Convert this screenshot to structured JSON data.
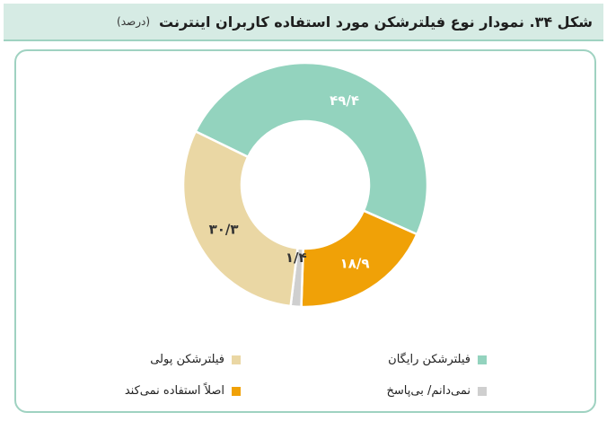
{
  "header": {
    "title": "شکل ۳۴. نمودار نوع فیلترشکن مورد استفاده کاربران اینترنت",
    "unit": "(درصد)"
  },
  "chart_data": {
    "type": "pie",
    "variant": "donut",
    "title": "شکل ۳۴. نمودار نوع فیلترشکن مورد استفاده کاربران اینترنت",
    "unit": "(درصد)",
    "legend_position": "bottom",
    "slices": [
      {
        "name": "فیلترشکن رایگان",
        "value": 49.4,
        "label": "۴۹/۴",
        "color": "#93d3be",
        "label_color": "#ffffff"
      },
      {
        "name": "اصلاً استفاده نمی‌کند",
        "value": 18.9,
        "label": "۱۸/۹",
        "color": "#f0a107",
        "label_color": "#ffffff"
      },
      {
        "name": "نمی‌دانم/ بی‌پاسخ",
        "value": 1.4,
        "label": "۱/۴",
        "color": "#cfcfcf",
        "label_color": "#333333"
      },
      {
        "name": "فیلترشکن پولی",
        "value": 30.3,
        "label": "۳۰/۳",
        "color": "#ead7a4",
        "label_color": "#333333"
      }
    ]
  }
}
